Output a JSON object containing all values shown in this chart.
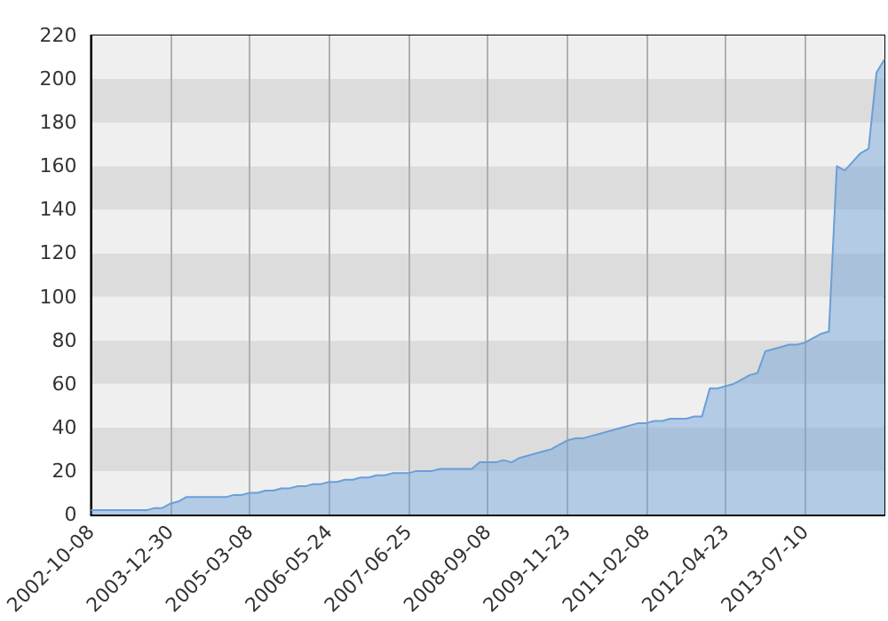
{
  "chart_data": {
    "type": "area",
    "categories": [
      "2002-10-08",
      null,
      null,
      null,
      null,
      null,
      null,
      null,
      null,
      null,
      "2003-12-30",
      null,
      null,
      null,
      null,
      null,
      null,
      null,
      null,
      null,
      "2005-03-08",
      null,
      null,
      null,
      null,
      null,
      null,
      null,
      null,
      null,
      "2006-05-24",
      null,
      null,
      null,
      null,
      null,
      null,
      null,
      null,
      null,
      "2007-06-25",
      null,
      null,
      null,
      null,
      null,
      null,
      null,
      null,
      null,
      "2008-09-08",
      null,
      null,
      null,
      null,
      null,
      null,
      null,
      null,
      null,
      "2009-11-23",
      null,
      null,
      null,
      null,
      null,
      null,
      null,
      null,
      null,
      "2011-02-08",
      null,
      null,
      null,
      null,
      null,
      null,
      null,
      null,
      null,
      "2012-04-23",
      null,
      null,
      null,
      null,
      null,
      null,
      null,
      null,
      null,
      "2013-07-10",
      null,
      null,
      null,
      null,
      null,
      null,
      null,
      null,
      null,
      null
    ],
    "series": [
      {
        "color": "#6a9fd8",
        "values": [
          2,
          2,
          2,
          2,
          2,
          2,
          2,
          2,
          3,
          3,
          5,
          6,
          8,
          8,
          8,
          8,
          8,
          8,
          9,
          9,
          10,
          10,
          11,
          11,
          12,
          12,
          13,
          13,
          14,
          14,
          15,
          15,
          16,
          16,
          17,
          17,
          18,
          18,
          19,
          19,
          19,
          20,
          20,
          20,
          21,
          21,
          21,
          21,
          21,
          24,
          24,
          24,
          25,
          24,
          26,
          27,
          28,
          29,
          30,
          32,
          34,
          35,
          35,
          36,
          37,
          38,
          39,
          40,
          41,
          42,
          42,
          43,
          43,
          44,
          44,
          44,
          45,
          45,
          58,
          58,
          59,
          60,
          62,
          64,
          65,
          75,
          76,
          77,
          78,
          78,
          79,
          81,
          83,
          84,
          160,
          158,
          162,
          166,
          168,
          203,
          209
        ]
      }
    ],
    "ylim": [
      0,
      220
    ],
    "yticks": [
      0,
      20,
      40,
      60,
      80,
      100,
      120,
      140,
      160,
      180,
      200,
      220
    ],
    "grid": true,
    "marker": "none",
    "line_style": "solid"
  }
}
